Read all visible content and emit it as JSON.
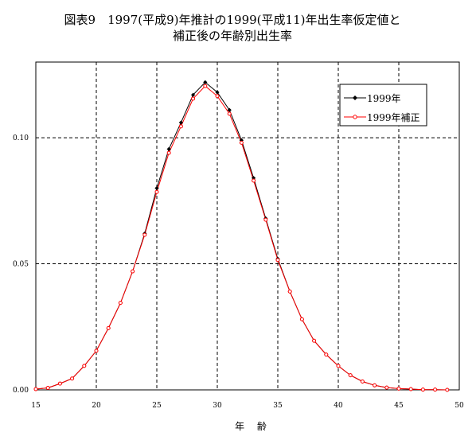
{
  "chart_data": {
    "type": "line",
    "title": "図表9　1997(平成9)年推計の1999(平成11)年出生率仮定値と",
    "subtitle": "補正後の年齢別出生率",
    "xlabel": "年 齢",
    "ylabel": "",
    "xlim": [
      15,
      50
    ],
    "ylim": [
      0,
      0.13
    ],
    "x_ticks": [
      "15",
      "20",
      "25",
      "30",
      "35",
      "40",
      "45",
      "50"
    ],
    "y_ticks": [
      "0.00",
      "0.05",
      "0.10"
    ],
    "grid": "dashed, major ticks",
    "legend_position": "top-right",
    "series": [
      {
        "name": "1999年",
        "color": "#000000",
        "marker": "filled-diamond",
        "x": [
          15,
          16,
          17,
          18,
          19,
          20,
          21,
          22,
          23,
          24,
          25,
          26,
          27,
          28,
          29,
          30,
          31,
          32,
          33,
          34,
          35,
          36,
          37,
          38,
          39,
          40,
          41,
          42,
          43,
          44,
          45,
          46,
          47,
          48,
          49
        ],
        "values": [
          0.0003,
          0.0008,
          0.0025,
          0.0045,
          0.0095,
          0.0155,
          0.0245,
          0.0345,
          0.047,
          0.062,
          0.08,
          0.0955,
          0.106,
          0.117,
          0.122,
          0.118,
          0.111,
          0.099,
          0.084,
          0.068,
          0.052,
          0.039,
          0.028,
          0.0195,
          0.014,
          0.0095,
          0.0058,
          0.0033,
          0.0018,
          0.0009,
          0.0005,
          0.0003,
          0.0001,
          0.0001,
          0.0
        ]
      },
      {
        "name": "1999年補正",
        "color": "#ff0000",
        "marker": "open-circle",
        "x": [
          15,
          16,
          17,
          18,
          19,
          20,
          21,
          22,
          23,
          24,
          25,
          26,
          27,
          28,
          29,
          30,
          31,
          32,
          33,
          34,
          35,
          36,
          37,
          38,
          39,
          40,
          41,
          42,
          43,
          44,
          45,
          46,
          47,
          48,
          49
        ],
        "values": [
          0.0003,
          0.0008,
          0.0025,
          0.0045,
          0.0095,
          0.0155,
          0.0245,
          0.0345,
          0.047,
          0.0615,
          0.0785,
          0.094,
          0.1045,
          0.1155,
          0.1205,
          0.1165,
          0.1095,
          0.098,
          0.083,
          0.0675,
          0.0515,
          0.039,
          0.028,
          0.0195,
          0.014,
          0.0095,
          0.0058,
          0.0033,
          0.0018,
          0.0009,
          0.0005,
          0.0003,
          0.0001,
          0.0001,
          0.0
        ]
      }
    ]
  }
}
